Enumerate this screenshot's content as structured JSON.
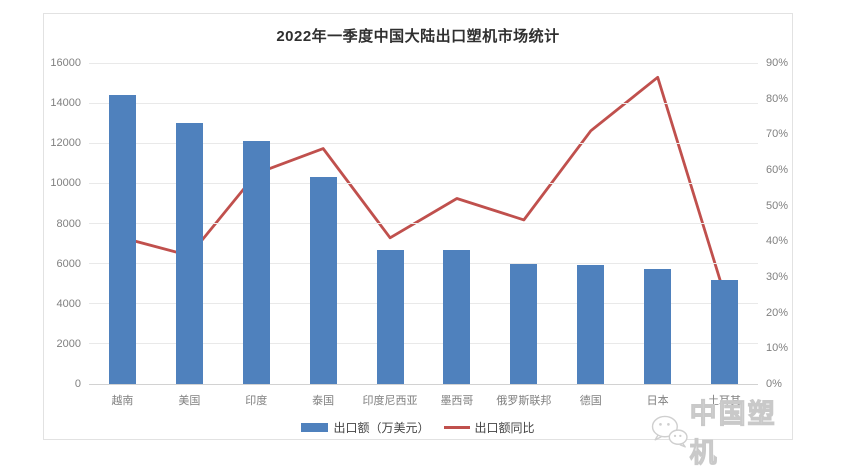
{
  "watermark": {
    "icon": "wechat-logo-icon",
    "text": "中国塑机"
  },
  "colors": {
    "bar": "#4F81BD",
    "line": "#C0504D",
    "gridline": "#E9E9E9",
    "axis_baseline": "#D2D2D2",
    "tick_text": "#808080",
    "title_text": "#2F2F2F",
    "legend_text": "#444444",
    "panel_border": "#E2E2E2",
    "watermark_text": "#CDCDCD"
  },
  "chart_data": {
    "type": "combo",
    "title": "2022年一季度中国大陆出口塑机市场统计",
    "categories": [
      "越南",
      "美国",
      "印度",
      "泰国",
      "印度尼西亚",
      "墨西哥",
      "俄罗斯联邦",
      "德国",
      "日本",
      "土耳其"
    ],
    "series": [
      {
        "name": "出口额（万美元）",
        "type": "bar",
        "axis": "left",
        "color": "#4F81BD",
        "values": [
          14400,
          13000,
          12100,
          10300,
          6700,
          6700,
          6000,
          5950,
          5750,
          5200
        ]
      },
      {
        "name": "出口额同比",
        "type": "line",
        "axis": "right",
        "color": "#C0504D",
        "unit": "%",
        "values": [
          41,
          36,
          59,
          66,
          41,
          52,
          46,
          71,
          86,
          25
        ]
      }
    ],
    "axes": {
      "left": {
        "min": 0,
        "max": 16000,
        "step": 2000,
        "ticks": [
          "0",
          "2000",
          "4000",
          "6000",
          "8000",
          "10000",
          "12000",
          "14000",
          "16000"
        ]
      },
      "right": {
        "min": 0,
        "max": 90,
        "step": 10,
        "unit": "%",
        "ticks": [
          "0%",
          "10%",
          "20%",
          "30%",
          "40%",
          "50%",
          "60%",
          "70%",
          "80%",
          "90%"
        ]
      }
    },
    "grid": true,
    "legend_position": "bottom"
  }
}
